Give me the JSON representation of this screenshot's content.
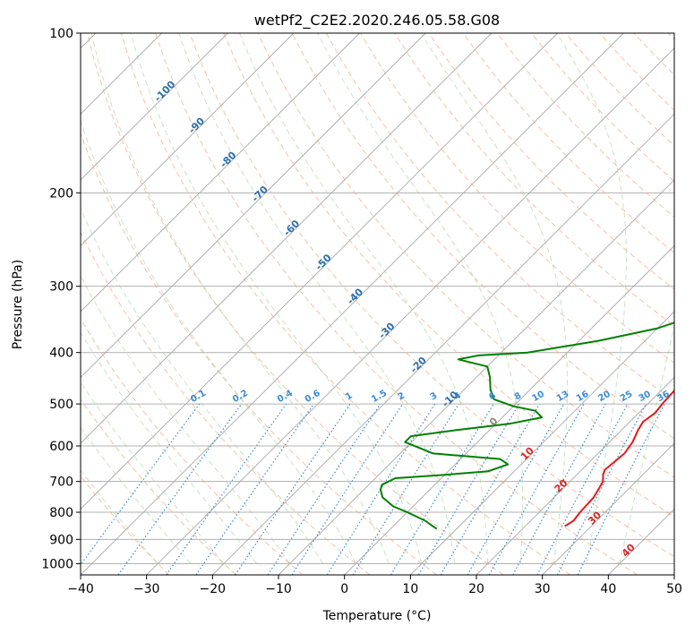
{
  "chart_data": {
    "type": "line",
    "title": "wetPf2_C2E2.2020.246.05.58.G08",
    "xlabel": "Temperature (°C)",
    "ylabel": "Pressure (hPa)",
    "xlim": [
      -40,
      50
    ],
    "ylim": [
      1050,
      100
    ],
    "x_ticks": [
      -40,
      -30,
      -20,
      -10,
      0,
      10,
      20,
      30,
      40,
      50
    ],
    "y_ticks": [
      100,
      200,
      300,
      400,
      500,
      600,
      700,
      800,
      900,
      1000
    ],
    "skew_factor": 35,
    "series": [
      {
        "name": "Temperature",
        "color": "#e41a1c",
        "points": [
          [
            26.0,
            850
          ],
          [
            26.5,
            830
          ],
          [
            26.2,
            800
          ],
          [
            26.0,
            750
          ],
          [
            25.0,
            700
          ],
          [
            24.0,
            680
          ],
          [
            23.5,
            665
          ],
          [
            24.0,
            620
          ],
          [
            23.5,
            590
          ],
          [
            22.5,
            560
          ],
          [
            22.0,
            540
          ],
          [
            22.5,
            520
          ],
          [
            22.2,
            500
          ],
          [
            22.0,
            470
          ],
          [
            21.0,
            440
          ],
          [
            19.5,
            420
          ],
          [
            17.5,
            400
          ],
          [
            16.0,
            380
          ],
          [
            14.5,
            350
          ],
          [
            14.0,
            330
          ],
          [
            14.0,
            310
          ],
          [
            13.5,
            290
          ],
          [
            11.0,
            260
          ],
          [
            7.0,
            230
          ],
          [
            3.0,
            200
          ],
          [
            -0.5,
            180
          ],
          [
            -2.0,
            170
          ],
          [
            -2.5,
            160
          ],
          [
            -2.5,
            150
          ],
          [
            -3.0,
            140
          ],
          [
            -2.5,
            130
          ],
          [
            -1.5,
            120
          ],
          [
            -0.5,
            110
          ],
          [
            1.0,
            102
          ]
        ]
      },
      {
        "name": "Dewpoint",
        "color": "#008000",
        "points": [
          [
            7.0,
            860
          ],
          [
            6.0,
            850
          ],
          [
            4.0,
            830
          ],
          [
            0.0,
            800
          ],
          [
            -3.0,
            780
          ],
          [
            -6.0,
            750
          ],
          [
            -7.5,
            725
          ],
          [
            -8.0,
            710
          ],
          [
            -7.0,
            690
          ],
          [
            0.0,
            680
          ],
          [
            6.0,
            670
          ],
          [
            8.0,
            650
          ],
          [
            6.0,
            635
          ],
          [
            -5.0,
            620
          ],
          [
            -11.0,
            590
          ],
          [
            -11.0,
            575
          ],
          [
            -5.0,
            560
          ],
          [
            2.0,
            545
          ],
          [
            6.0,
            530
          ],
          [
            4.0,
            515
          ],
          [
            0.0,
            505
          ],
          [
            -4.0,
            490
          ],
          [
            -6.0,
            470
          ],
          [
            -8.0,
            445
          ],
          [
            -10.0,
            425
          ],
          [
            -15.5,
            412
          ],
          [
            -13.0,
            405
          ],
          [
            -6.0,
            400
          ],
          [
            3.0,
            380
          ],
          [
            10.0,
            360
          ],
          [
            14.0,
            340
          ],
          [
            15.0,
            320
          ],
          [
            15.0,
            300
          ],
          [
            12.0,
            270
          ],
          [
            8.0,
            240
          ],
          [
            4.0,
            210
          ],
          [
            0.5,
            190
          ],
          [
            -2.0,
            180
          ],
          [
            -3.0,
            170
          ],
          [
            -3.0,
            160
          ],
          [
            -3.0,
            155
          ],
          [
            -4.5,
            150
          ],
          [
            -5.0,
            140
          ],
          [
            -5.0,
            130
          ],
          [
            -3.5,
            120
          ],
          [
            -1.5,
            112
          ],
          [
            0.0,
            105
          ],
          [
            0.0,
            100
          ]
        ]
      }
    ],
    "dry_adiabat_labels": [
      "-100",
      "-90",
      "-80",
      "-70",
      "-60",
      "-50",
      "-40",
      "-30",
      "-20",
      "-10",
      "0",
      "10",
      "20",
      "30",
      "40"
    ],
    "mixing_ratio_labels": [
      "0.1",
      "0.2",
      "0.4",
      "0.6",
      "1",
      "1.5",
      "2",
      "3",
      "4",
      "6",
      "8",
      "10",
      "13",
      "16",
      "20",
      "25",
      "30",
      "36"
    ]
  }
}
